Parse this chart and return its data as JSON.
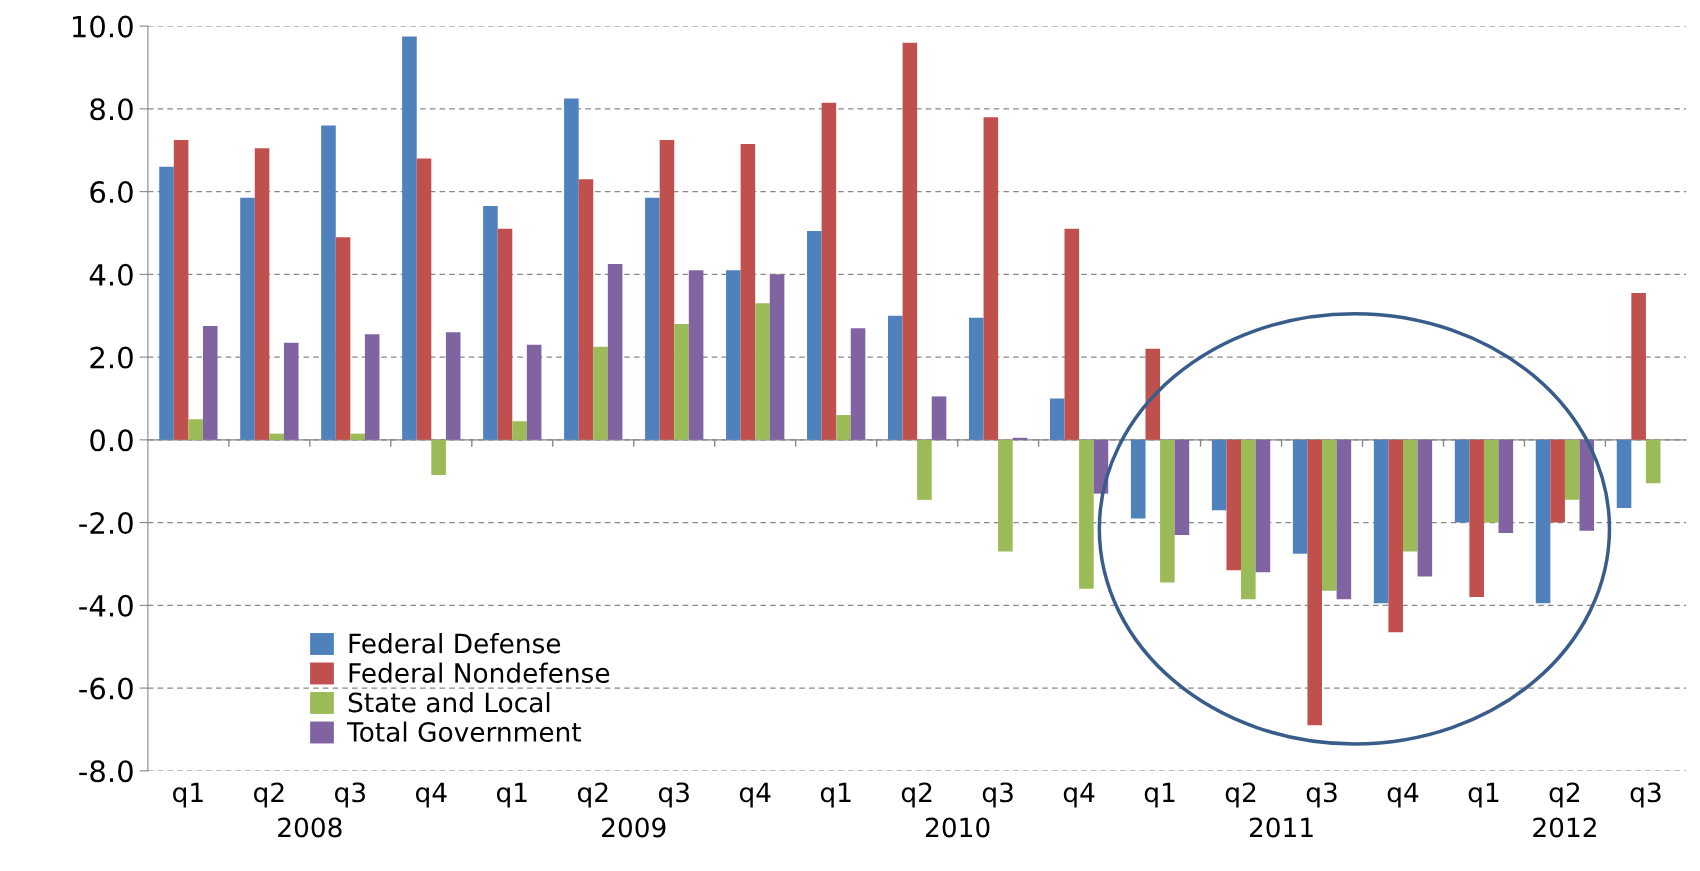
{
  "chart_data": {
    "type": "bar",
    "categories": [
      "q1",
      "q2",
      "q3",
      "q4",
      "q1",
      "q2",
      "q3",
      "q4",
      "q1",
      "q2",
      "q3",
      "q4",
      "q1",
      "q2",
      "q3",
      "q4",
      "q1",
      "q2",
      "q3"
    ],
    "series": [
      {
        "name": "Federal Defense",
        "color": "#4f81bd",
        "values": [
          6.6,
          5.85,
          7.6,
          9.75,
          5.65,
          8.25,
          5.85,
          4.1,
          5.05,
          3.0,
          2.95,
          1.0,
          -1.9,
          -1.7,
          -2.75,
          -3.95,
          -2.0,
          -3.95,
          -1.65
        ]
      },
      {
        "name": "Federal Nondefense",
        "color": "#c0504d",
        "values": [
          7.25,
          7.05,
          4.9,
          6.8,
          5.1,
          6.3,
          7.25,
          7.15,
          8.15,
          9.6,
          7.8,
          5.1,
          2.2,
          -3.15,
          -6.9,
          -4.65,
          -3.8,
          -2.0,
          3.55
        ]
      },
      {
        "name": "State and Local",
        "color": "#9bbb59",
        "values": [
          0.5,
          0.15,
          0.15,
          -0.85,
          0.45,
          2.25,
          2.8,
          3.3,
          0.6,
          -1.45,
          -2.7,
          -3.6,
          -3.45,
          -3.85,
          -3.65,
          -2.7,
          -2.0,
          -1.45,
          -1.05
        ]
      },
      {
        "name": "Total Government",
        "color": "#8064a2",
        "values": [
          2.75,
          2.35,
          2.55,
          2.6,
          2.3,
          4.25,
          4.1,
          4.0,
          2.7,
          1.05,
          0.05,
          -1.3,
          -2.3,
          -3.2,
          -3.85,
          -3.3,
          -2.25,
          -2.2,
          null
        ]
      }
    ],
    "annotations": [
      "2008",
      "2009",
      "2010",
      "2011",
      "2012"
    ],
    "ylim": [
      -8,
      10
    ],
    "yticks": [
      {
        "value": -8,
        "label": "-8.0"
      },
      {
        "value": -6,
        "label": "-6.0"
      },
      {
        "value": -4,
        "label": "-4.0"
      },
      {
        "value": -2,
        "label": "-2.0"
      },
      {
        "value": 0,
        "label": "0.0"
      },
      {
        "value": 2,
        "label": "2.0"
      },
      {
        "value": 4,
        "label": "4.0"
      },
      {
        "value": 6,
        "label": "6.0"
      },
      {
        "value": 8,
        "label": "8.0"
      },
      {
        "value": 10,
        "label": "10.0"
      }
    ],
    "grid": "y",
    "legend": "bottom left"
  }
}
